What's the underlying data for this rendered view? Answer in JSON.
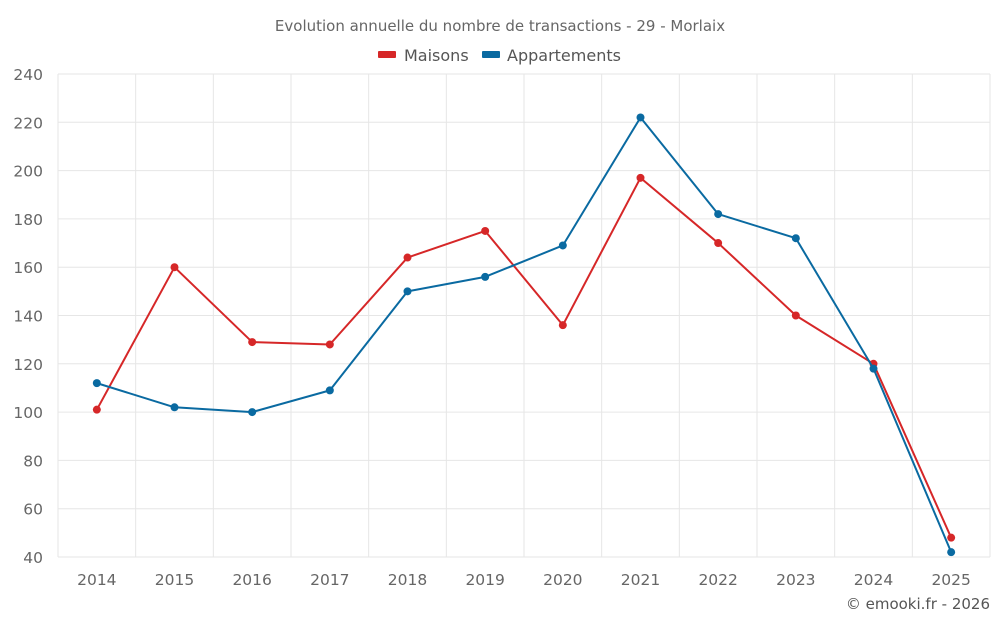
{
  "chart_data": {
    "type": "line",
    "title": "Evolution annuelle du nombre de transactions - 29 - Morlaix",
    "xlabel": "",
    "ylabel": "",
    "x": [
      "2014",
      "2015",
      "2016",
      "2017",
      "2018",
      "2019",
      "2020",
      "2021",
      "2022",
      "2023",
      "2024",
      "2025"
    ],
    "ylim": [
      40,
      240
    ],
    "yticks": [
      "40",
      "60",
      "80",
      "100",
      "120",
      "140",
      "160",
      "180",
      "200",
      "220",
      "240"
    ],
    "grid": true,
    "legend_position": "top-center",
    "series": [
      {
        "name": "Maisons",
        "color": "#d62728",
        "values": [
          101,
          160,
          129,
          128,
          164,
          175,
          136,
          197,
          170,
          140,
          120,
          48
        ]
      },
      {
        "name": "Appartements",
        "color": "#0a6aa1",
        "values": [
          112,
          102,
          100,
          109,
          150,
          156,
          169,
          222,
          182,
          172,
          118,
          42
        ]
      }
    ]
  },
  "credit": "© emooki.fr - 2026"
}
